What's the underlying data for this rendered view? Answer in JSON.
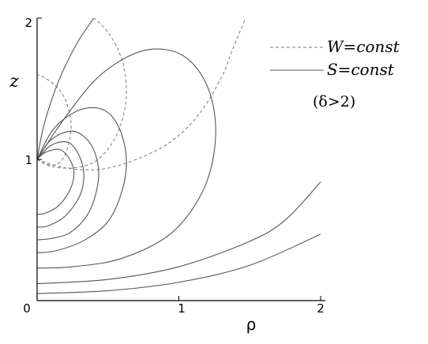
{
  "chart_data": {
    "type": "line",
    "xlabel": "ρ",
    "ylabel": "z",
    "xlim": [
      0,
      2
    ],
    "ylim": [
      0,
      2
    ],
    "x_ticks": [
      "0",
      "1",
      "2"
    ],
    "y_ticks": [
      "0",
      "1",
      "2"
    ],
    "annotation": "(δ>2)",
    "legend_position": "top-right",
    "series": [
      {
        "name": "W=const",
        "style": "dashed",
        "color": "#7a7a7a",
        "curves": [
          {
            "x": [
              0,
              0.05,
              0.12,
              0.18,
              0.22,
              0.24,
              0.22,
              0.18,
              0.12,
              0.05,
              0
            ],
            "y": [
              1.0,
              0.97,
              0.96,
              1.0,
              1.1,
              1.24,
              1.36,
              1.46,
              1.53,
              1.58,
              1.6
            ]
          },
          {
            "x": [
              0,
              0.1,
              0.25,
              0.4,
              0.52,
              0.6,
              0.63,
              0.6,
              0.5,
              0.35,
              0.2,
              0.1
            ],
            "y": [
              1.0,
              0.95,
              0.94,
              0.98,
              1.1,
              1.28,
              1.48,
              1.7,
              1.9,
              2.04,
              2.14,
              2.2
            ]
          },
          {
            "x": [
              0,
              0.2,
              0.45,
              0.7,
              0.95,
              1.15,
              1.3,
              1.38,
              1.47
            ],
            "y": [
              1.0,
              0.94,
              0.93,
              1.0,
              1.13,
              1.33,
              1.58,
              1.78,
              2.0
            ]
          }
        ]
      },
      {
        "name": "S=const",
        "style": "solid",
        "color": "#555555",
        "curves": [
          {
            "x": [
              0,
              0.05,
              0.15,
              0.28,
              0.4
            ],
            "y": [
              1.0,
              1.25,
              1.55,
              1.82,
              2.0
            ]
          },
          {
            "x": [
              0,
              0.06,
              0.16,
              0.23,
              0.26,
              0.23,
              0.15,
              0.06,
              0
            ],
            "y": [
              1.0,
              1.05,
              1.07,
              1.0,
              0.9,
              0.78,
              0.67,
              0.62,
              0.61
            ]
          },
          {
            "x": [
              0,
              0.1,
              0.22,
              0.3,
              0.33,
              0.3,
              0.2,
              0.08,
              0
            ],
            "y": [
              1.0,
              1.1,
              1.12,
              1.02,
              0.88,
              0.74,
              0.6,
              0.53,
              0.52
            ]
          },
          {
            "x": [
              0,
              0.1,
              0.25,
              0.37,
              0.43,
              0.42,
              0.35,
              0.23,
              0.1,
              0
            ],
            "y": [
              1.0,
              1.14,
              1.2,
              1.12,
              0.96,
              0.78,
              0.6,
              0.48,
              0.44,
              0.43
            ]
          },
          {
            "x": [
              0,
              0.12,
              0.3,
              0.47,
              0.58,
              0.63,
              0.6,
              0.5,
              0.32,
              0.12,
              0
            ],
            "y": [
              1.0,
              1.22,
              1.35,
              1.35,
              1.22,
              1.0,
              0.78,
              0.56,
              0.42,
              0.35,
              0.34
            ]
          },
          {
            "x": [
              0,
              0.2,
              0.45,
              0.75,
              1.02,
              1.2,
              1.26,
              1.18,
              0.95,
              0.6,
              0.25,
              0
            ],
            "y": [
              1.0,
              1.3,
              1.6,
              1.77,
              1.74,
              1.52,
              1.18,
              0.8,
              0.48,
              0.3,
              0.24,
              0.23
            ]
          },
          {
            "x": [
              0,
              0.5,
              1.0,
              1.5,
              1.75,
              2.0
            ],
            "y": [
              0.12,
              0.15,
              0.24,
              0.42,
              0.57,
              0.84
            ]
          },
          {
            "x": [
              0,
              0.5,
              1.0,
              1.5,
              2.0
            ],
            "y": [
              0.05,
              0.07,
              0.13,
              0.25,
              0.47
            ]
          }
        ]
      }
    ]
  }
}
